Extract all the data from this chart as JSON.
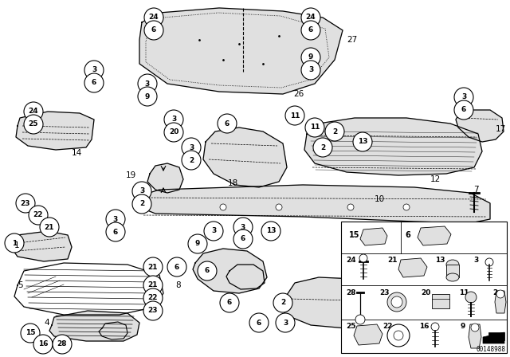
{
  "bg_color": "#ffffff",
  "part_number": "00148988",
  "fig_w": 6.4,
  "fig_h": 4.48,
  "dpi": 100
}
